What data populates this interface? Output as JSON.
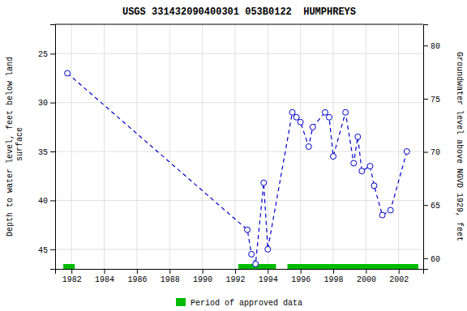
{
  "chart_data": {
    "type": "line",
    "title": "USGS 331432090400301 053B0122  HUMPHREYS",
    "y_label": "Depth to water level, feet below land\n surface",
    "y2_label": "Groundwater level above NGVD 1929, feet",
    "xlim": [
      1981.0,
      2003.5
    ],
    "xticks": [
      1982,
      1984,
      1986,
      1988,
      1990,
      1992,
      1994,
      1996,
      1998,
      2000,
      2002
    ],
    "ylim": [
      47.0,
      22.0
    ],
    "yticks": [
      25,
      30,
      35,
      40,
      45
    ],
    "y2lim": [
      59.0,
      82.0
    ],
    "y2ticks": [
      60,
      65,
      70,
      75,
      80
    ],
    "x": [
      1981.75,
      1992.75,
      1993.0,
      1993.25,
      1993.75,
      1994.0,
      1995.5,
      1995.75,
      1996.0,
      1996.5,
      1996.75,
      1997.5,
      1997.75,
      1998.0,
      1998.75,
      1999.25,
      1999.5,
      1999.75,
      2000.25,
      2000.5,
      2001.0,
      2001.5,
      2002.5
    ],
    "series": [
      {
        "color": "#0000cc",
        "marker": "circle",
        "line_style": "dashed",
        "values": [
          27.0,
          43.0,
          45.5,
          46.5,
          38.2,
          45.0,
          31.0,
          31.5,
          32.0,
          34.5,
          32.5,
          31.0,
          31.5,
          35.5,
          31.0,
          36.2,
          33.5,
          37.0,
          36.5,
          38.5,
          41.5,
          41.0,
          35.0
        ]
      }
    ],
    "periods": {
      "name": "Period of approved data",
      "color": "#00bb00",
      "x_start": [
        1981.5,
        1992.2,
        1995.2
      ],
      "x_end": [
        1982.2,
        1994.5,
        2003.2
      ]
    },
    "grid": true,
    "legend": "bottom"
  }
}
